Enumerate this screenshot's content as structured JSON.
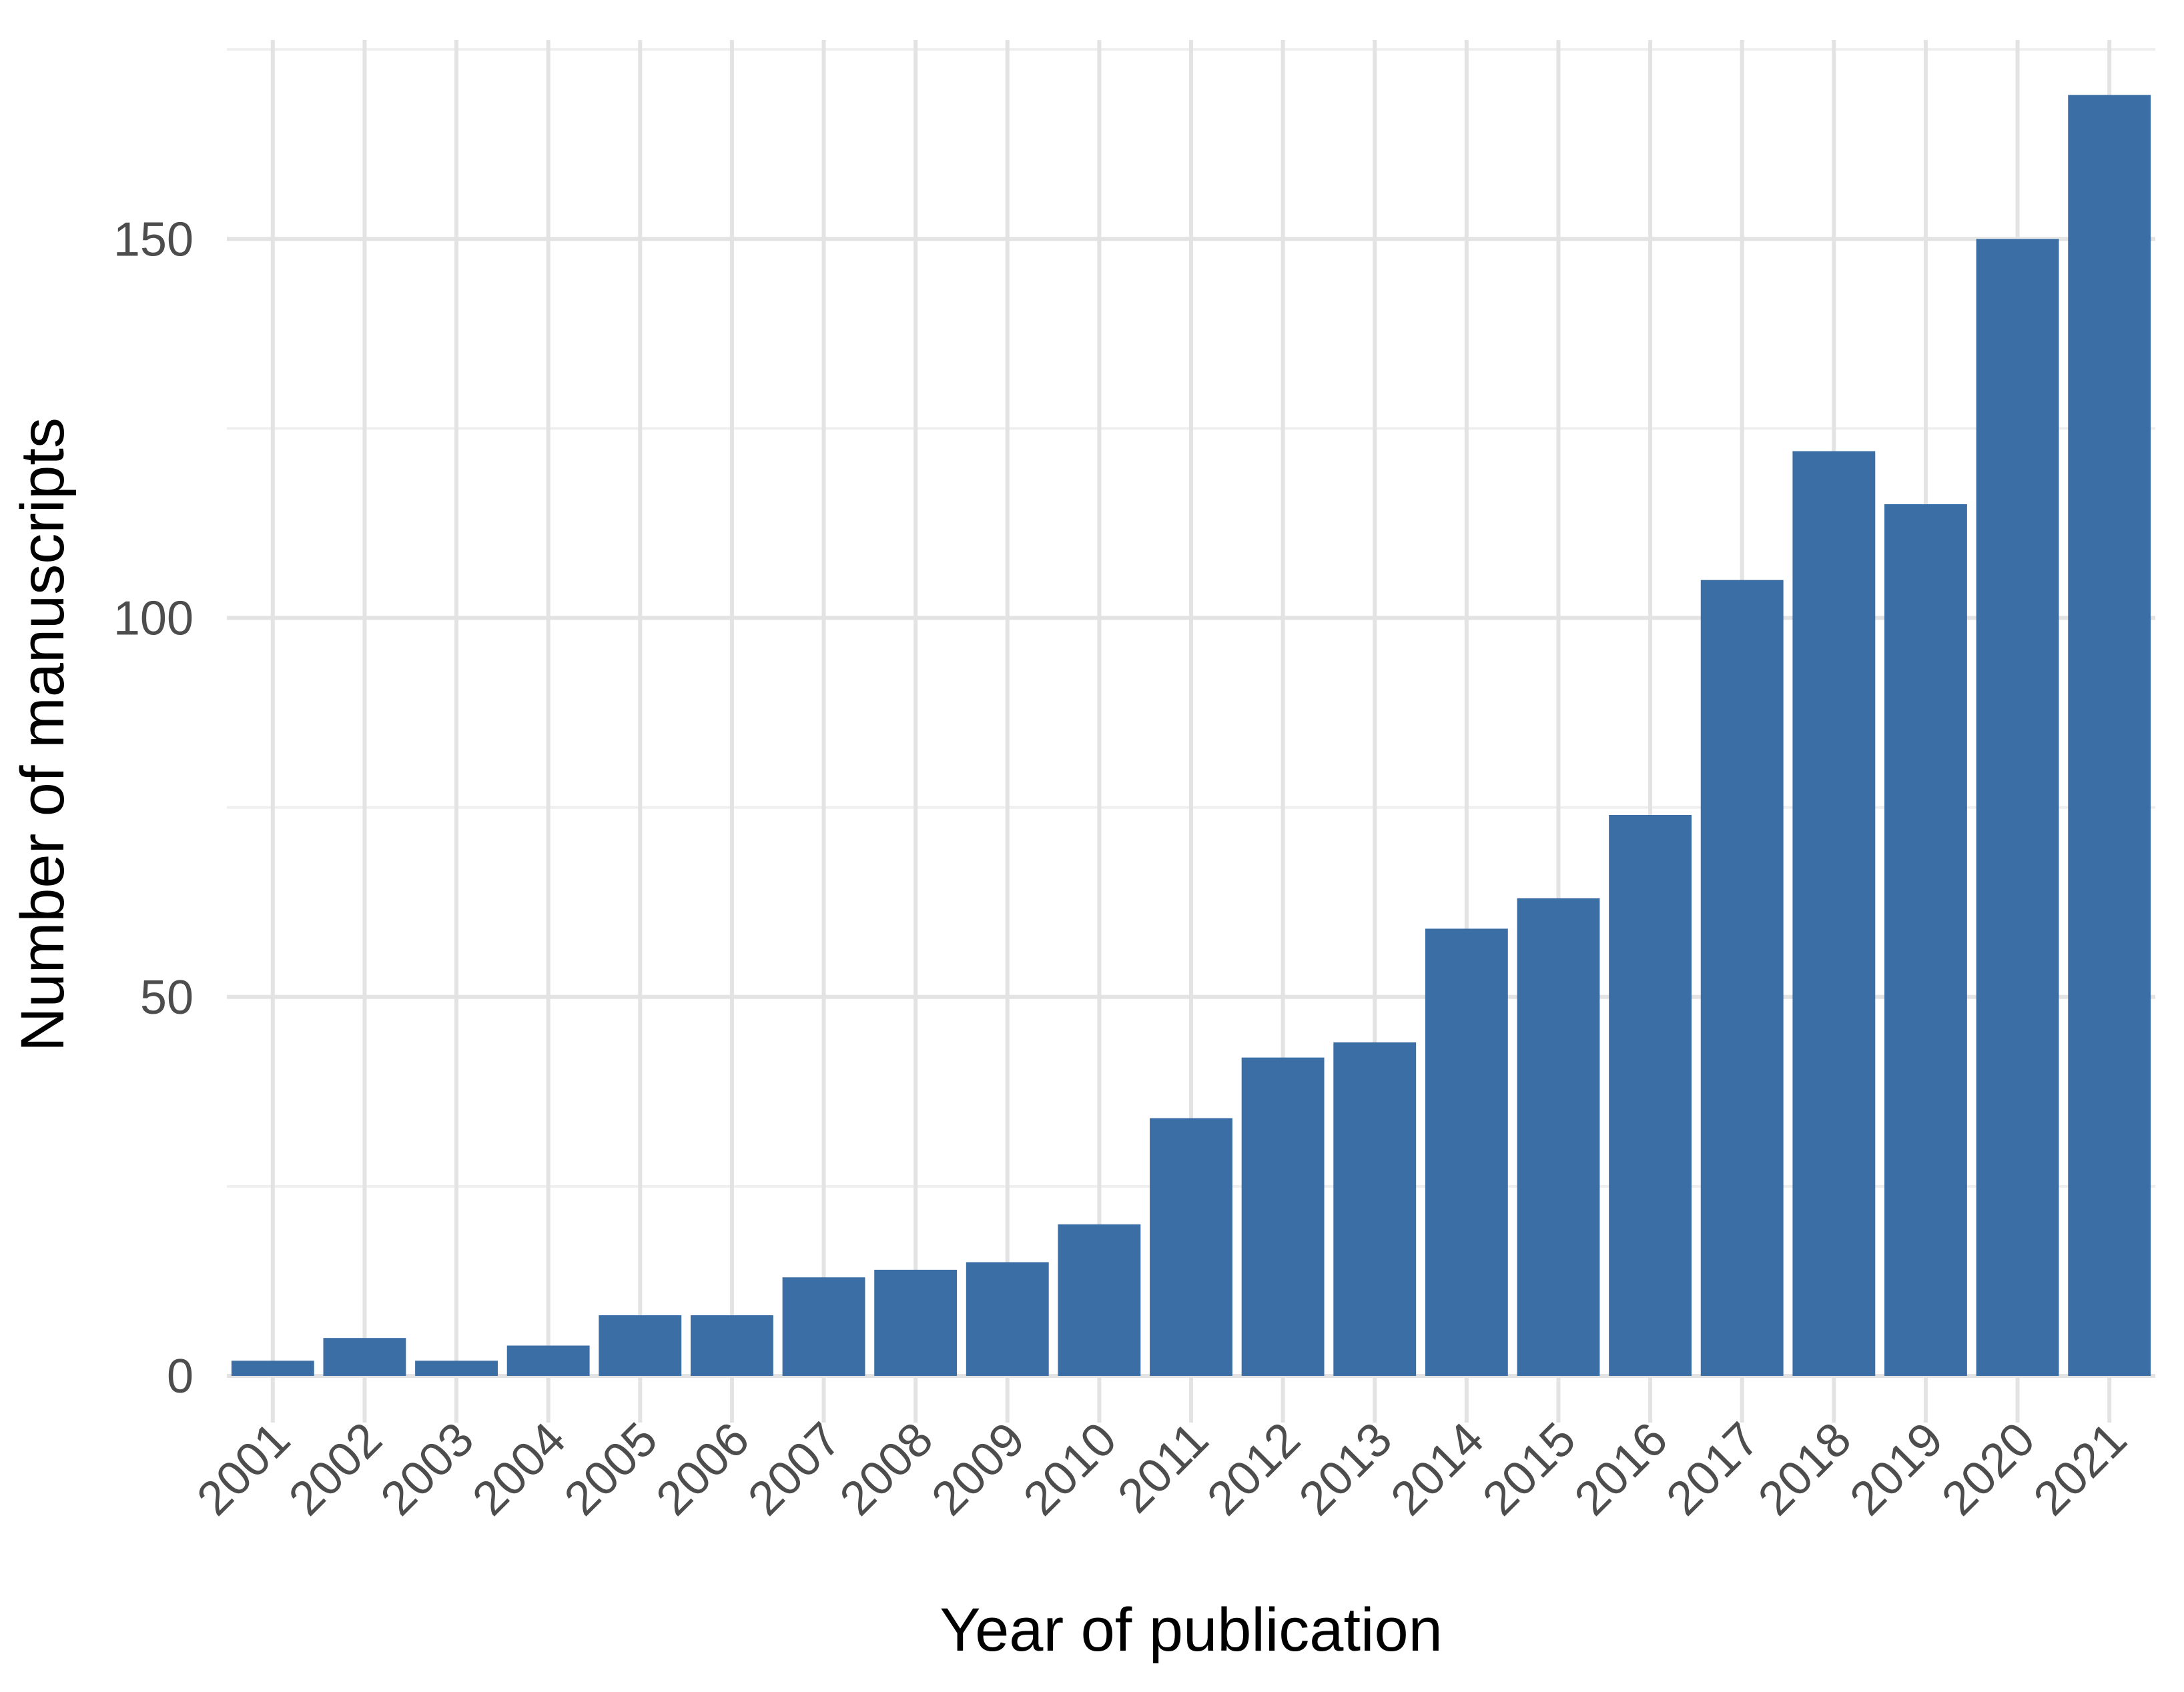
{
  "chart_data": {
    "type": "bar",
    "title": "",
    "xlabel": "Year of publication",
    "ylabel": "Number of manuscripts",
    "categories": [
      "2001",
      "2002",
      "2003",
      "2004",
      "2005",
      "2006",
      "2007",
      "2008",
      "2009",
      "2010",
      "2011",
      "2012",
      "2013",
      "2014",
      "2015",
      "2016",
      "2017",
      "2018",
      "2019",
      "2020",
      "2021"
    ],
    "values": [
      2,
      5,
      2,
      4,
      8,
      8,
      13,
      14,
      15,
      20,
      34,
      42,
      44,
      59,
      63,
      74,
      105,
      122,
      115,
      150,
      169
    ],
    "ylim": [
      0,
      175
    ],
    "yticks": [
      0,
      50,
      100,
      150
    ],
    "ytick_labels": [
      "0",
      "50",
      "100",
      "150"
    ],
    "grid": true,
    "bar_color": "#3b6ea5",
    "legend": "none"
  }
}
